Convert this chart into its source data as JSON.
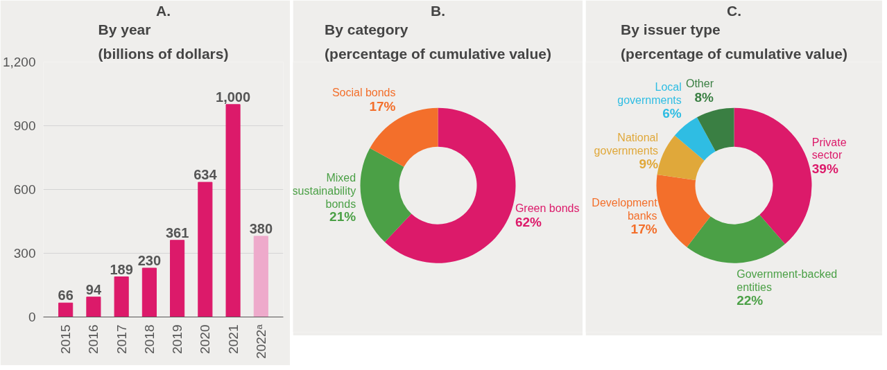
{
  "chart_data": [
    {
      "type": "bar",
      "title": "A.",
      "subtitle": "By year (billions of dollars)",
      "categories": [
        "2015",
        "2016",
        "2017",
        "2018",
        "2019",
        "2020",
        "2021",
        "2022ᵃ"
      ],
      "values": [
        66,
        94,
        189,
        230,
        361,
        634,
        1000,
        380
      ],
      "colors": [
        "#dc1a6a",
        "#dc1a6a",
        "#dc1a6a",
        "#dc1a6a",
        "#dc1a6a",
        "#dc1a6a",
        "#dc1a6a",
        "#eeaacb"
      ],
      "value_labels": [
        "66",
        "94",
        "189",
        "230",
        "361",
        "634",
        "1,000",
        "380"
      ],
      "ylim": [
        0,
        1200
      ],
      "yticks": [
        0,
        300,
        600,
        900,
        {
          "value": 1200,
          "label": "1,200"
        }
      ],
      "grid": "y"
    },
    {
      "type": "donut",
      "title": "B.",
      "subtitle": "By category (percentage of cumulative value)",
      "categories": [
        "Green bonds",
        "Mixed sustainability bonds",
        "Social bonds"
      ],
      "values": [
        62,
        21,
        17
      ],
      "colors": [
        "#dc1a6a",
        "#4ba046",
        "#f36f2b"
      ],
      "value_labels": [
        "62%",
        "21%",
        "17%"
      ]
    },
    {
      "type": "donut",
      "title": "C.",
      "subtitle": "By issuer type (percentage of cumulative value)",
      "categories": [
        "Private sector",
        "Government-backed entities",
        "Development banks",
        "National governments",
        "Local governments",
        "Other"
      ],
      "values": [
        39,
        22,
        17,
        9,
        6,
        8
      ],
      "colors": [
        "#dc1a6a",
        "#4ba046",
        "#f36f2b",
        "#e0a83a",
        "#2fbde3",
        "#3a7f43"
      ],
      "value_labels": [
        "39%",
        "22%",
        "17%",
        "9%",
        "6%",
        "8%"
      ]
    }
  ]
}
